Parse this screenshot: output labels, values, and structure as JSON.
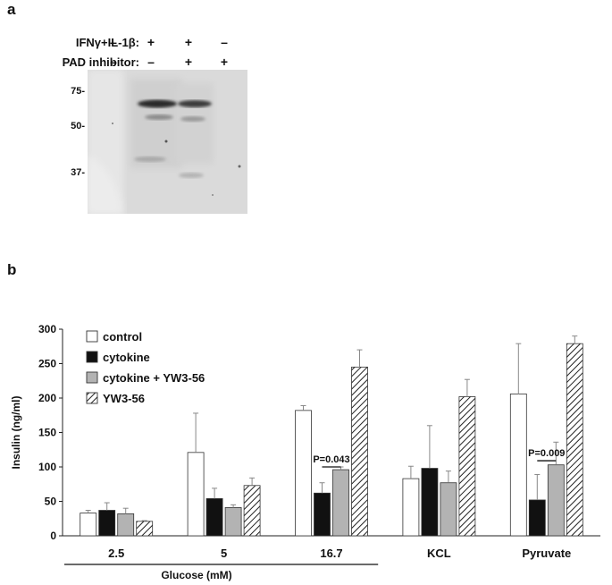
{
  "panel_a": {
    "label": "a",
    "treatments": [
      {
        "label": "IFNγ+IL-1β:",
        "signs": [
          "–",
          "+",
          "+",
          "–"
        ]
      },
      {
        "label": "PAD inhibitor:",
        "signs": [
          "–",
          "–",
          "+",
          "+"
        ]
      }
    ],
    "mw_markers": [
      "75-",
      "50-",
      "37-"
    ],
    "blot_colors": {
      "background": "#dedede",
      "band": "#2a2a2a"
    }
  },
  "panel_b": {
    "label": "b",
    "group_axis_label": "Glucose (mM)"
  },
  "chart_data": {
    "type": "bar",
    "ylabel": "Insulin (ng/ml)",
    "xlabel": "",
    "ylim": [
      0,
      300
    ],
    "yticks": [
      0,
      50,
      100,
      150,
      200,
      250,
      300
    ],
    "grid": false,
    "legend_position": "top-left",
    "categories": [
      "2.5",
      "5",
      "16.7",
      "KCL",
      "Pyruvate"
    ],
    "series": [
      {
        "name": "control",
        "fill": "#ffffff",
        "pattern": "none",
        "values": [
          33,
          121,
          182,
          83,
          206
        ],
        "errors": [
          4,
          57,
          7,
          18,
          73
        ]
      },
      {
        "name": "cytokine",
        "fill": "#111111",
        "pattern": "none",
        "values": [
          37,
          54,
          62,
          98,
          52
        ],
        "errors": [
          11,
          15,
          15,
          62,
          37
        ]
      },
      {
        "name": "cytokine + YW3-56",
        "fill": "#b3b3b3",
        "pattern": "none",
        "values": [
          32,
          41,
          96,
          77,
          103
        ],
        "errors": [
          8,
          4,
          4,
          17,
          33
        ]
      },
      {
        "name": "YW3-56",
        "fill": "#ffffff",
        "pattern": "hatch",
        "values": [
          21,
          73,
          245,
          202,
          279
        ],
        "errors": [
          1,
          11,
          25,
          25,
          11
        ]
      }
    ],
    "annotations": [
      {
        "text": "P=0.043",
        "category": "16.7",
        "y": 100
      },
      {
        "text": "P=0.009",
        "category": "Pyruvate",
        "y": 109
      }
    ]
  }
}
